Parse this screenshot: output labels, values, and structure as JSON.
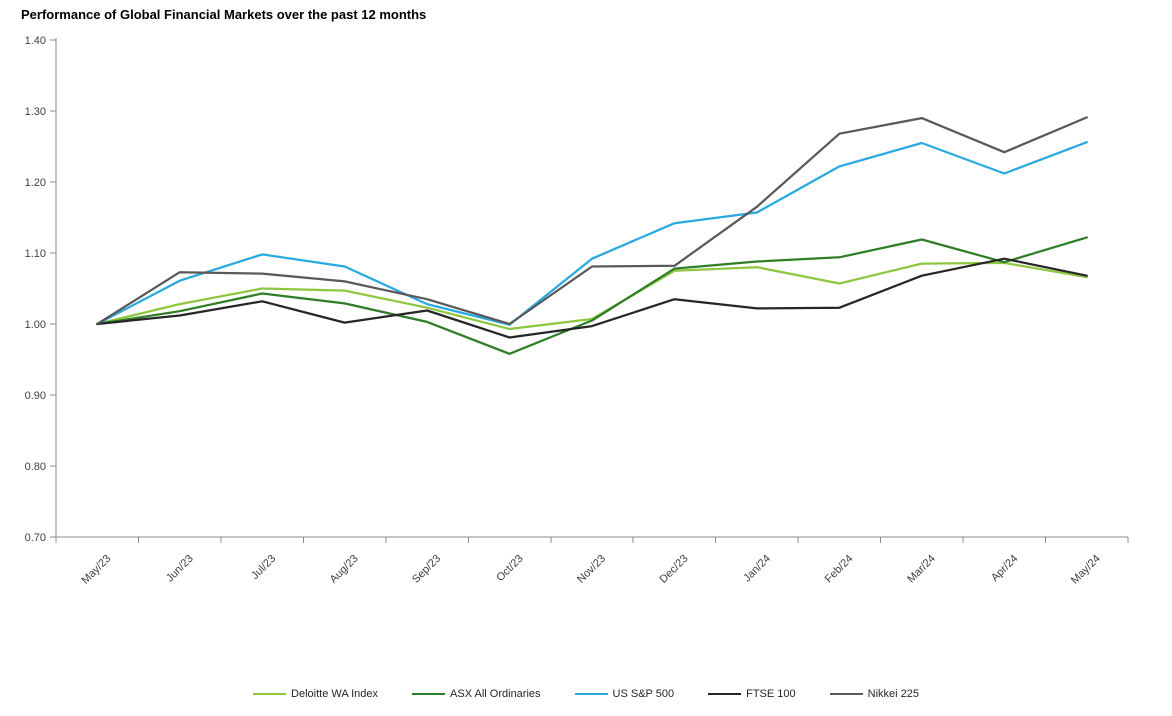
{
  "title": "Performance of Global Financial Markets over the past 12 months",
  "chart_data": {
    "type": "line",
    "title": "Performance of Global Financial Markets over the past 12 months",
    "categories": [
      "May/23",
      "Jun/23",
      "Jul/23",
      "Aug/23",
      "Sep/23",
      "Oct/23",
      "Nov/23",
      "Dec/23",
      "Jan/24",
      "Feb/24",
      "Mar/24",
      "Apr/24",
      "May/24"
    ],
    "series": [
      {
        "name": "Deloitte WA Index",
        "color": "#8ec63f",
        "values": [
          1.0,
          1.028,
          1.05,
          1.047,
          1.023,
          0.993,
          1.007,
          1.075,
          1.08,
          1.057,
          1.085,
          1.086,
          1.066
        ]
      },
      {
        "name": "ASX All Ordinaries",
        "color": "#2f7d26",
        "values": [
          1.0,
          1.018,
          1.043,
          1.029,
          1.003,
          0.958,
          1.005,
          1.078,
          1.088,
          1.094,
          1.119,
          1.087,
          1.122
        ]
      },
      {
        "name": "US S&P 500",
        "color": "#29a9e1",
        "values": [
          1.0,
          1.061,
          1.098,
          1.081,
          1.028,
          0.999,
          1.092,
          1.142,
          1.157,
          1.222,
          1.255,
          1.212,
          1.256
        ]
      },
      {
        "name": "FTSE 100",
        "color": "#262626",
        "values": [
          1.0,
          1.012,
          1.032,
          1.002,
          1.019,
          0.981,
          0.997,
          1.035,
          1.022,
          1.023,
          1.068,
          1.092,
          1.068
        ]
      },
      {
        "name": "Nikkei 225",
        "color": "#595959",
        "values": [
          1.0,
          1.073,
          1.071,
          1.06,
          1.035,
          1.0,
          1.081,
          1.082,
          1.165,
          1.268,
          1.29,
          1.242,
          1.291
        ]
      }
    ],
    "xlabel": "",
    "ylabel": "",
    "ylim": [
      0.7,
      1.4
    ],
    "ytick_step": 0.1,
    "ytick_labels": [
      "0.70",
      "0.80",
      "0.90",
      "1.00",
      "1.10",
      "1.20",
      "1.30",
      "1.40"
    ],
    "grid": false,
    "legend_position": "bottom",
    "axis_color": "#8c8c8c",
    "tick_label_color": "#3f3f3f"
  }
}
